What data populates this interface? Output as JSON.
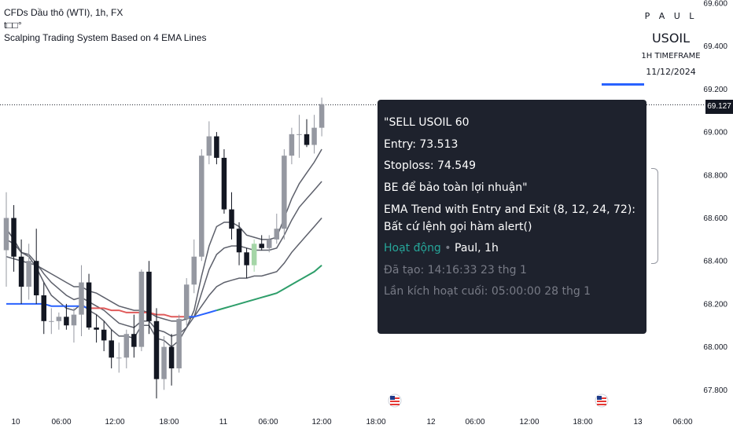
{
  "legend": {
    "line1": "CFDs Dầu thô (WTI), 1h, FX",
    "line2": "t□□°",
    "line3": "Scalping Trading System Based on 4 EMA Lines"
  },
  "branding": {
    "author": "P A U L",
    "symbol": "USOIL",
    "timeframe": "1H TIMEFRAME",
    "date": "11/12/2024"
  },
  "alert_popup": {
    "line1": "\"SELL USOIL 60",
    "line2": "Entry: 73.513",
    "line3": "Stoploss: 74.549",
    "line4": "BE để bảo toàn lợi nhuận\"",
    "line5": "EMA Trend with Entry and Exit (8, 12, 24, 72): Bất cứ lệnh gọi hàm alert()",
    "status": "Hoạt động",
    "separator": "•",
    "owner": "Paul, 1h",
    "created": "Đã tạo: 14:16:33 23 thg 1",
    "last_triggered": "Lần kích hoạt cuối: 05:00:00 28 thg 1"
  },
  "current_price_label": "69.127",
  "colors": {
    "up_candle": "#9598a1",
    "down_candle": "#131722",
    "highlight_candle": "#a5d6a7",
    "ema_fast": "#5d606b",
    "ema_long_red": "#e05a5a",
    "ema_long_blue": "#2962ff",
    "ema_long_green": "#2e9e6a",
    "tooltip_bg": "#1e222d",
    "active_text": "#26a69a"
  },
  "chart_data": {
    "type": "candlestick",
    "symbol": "USOIL",
    "interval": "1h",
    "ylim": [
      67.75,
      69.6
    ],
    "y_ticks": [
      "69.600",
      "69.400",
      "69.200",
      "69.000",
      "68.800",
      "68.600",
      "68.400",
      "68.200",
      "68.000",
      "67.800"
    ],
    "x_ticks": [
      "10",
      "06:00",
      "12:00",
      "18:00",
      "11",
      "06:00",
      "12:00",
      "18:00",
      "12",
      "06:00",
      "12:00",
      "18:00",
      "13",
      "06:00"
    ],
    "current_price": 69.127,
    "candles": [
      [
        68.45,
        68.72,
        68.28,
        68.6
      ],
      [
        68.6,
        68.66,
        68.35,
        68.42
      ],
      [
        68.42,
        68.5,
        68.2,
        68.28
      ],
      [
        68.28,
        68.48,
        68.22,
        68.4
      ],
      [
        68.4,
        68.55,
        68.2,
        68.24
      ],
      [
        68.24,
        68.3,
        68.06,
        68.12
      ],
      [
        68.12,
        68.18,
        68.06,
        68.12
      ],
      [
        68.12,
        68.16,
        68.08,
        68.14
      ],
      [
        68.14,
        68.2,
        68.08,
        68.1
      ],
      [
        68.1,
        68.18,
        68.02,
        68.15
      ],
      [
        68.15,
        68.38,
        68.05,
        68.3
      ],
      [
        68.3,
        68.34,
        68.08,
        68.09
      ],
      [
        68.09,
        68.15,
        68.02,
        68.08
      ],
      [
        68.08,
        68.12,
        67.98,
        68.03
      ],
      [
        68.03,
        68.08,
        67.9,
        67.95
      ],
      [
        67.95,
        68.02,
        67.88,
        67.95
      ],
      [
        67.95,
        68.08,
        67.9,
        68.06
      ],
      [
        68.06,
        68.15,
        67.95,
        68.0
      ],
      [
        68.0,
        68.36,
        67.98,
        68.35
      ],
      [
        68.35,
        68.4,
        68.06,
        68.12
      ],
      [
        68.12,
        68.18,
        67.76,
        67.85
      ],
      [
        67.85,
        68.05,
        67.8,
        68.0
      ],
      [
        68.0,
        68.06,
        67.82,
        67.9
      ],
      [
        67.9,
        68.15,
        67.88,
        68.13
      ],
      [
        68.13,
        68.32,
        68.1,
        68.29
      ],
      [
        68.29,
        68.5,
        68.25,
        68.42
      ],
      [
        68.42,
        68.92,
        68.4,
        68.89
      ],
      [
        68.89,
        69.05,
        68.85,
        68.98
      ],
      [
        68.98,
        69.0,
        68.85,
        68.88
      ],
      [
        68.88,
        68.92,
        68.62,
        68.64
      ],
      [
        68.64,
        68.72,
        68.5,
        68.55
      ],
      [
        68.55,
        68.58,
        68.38,
        68.44
      ],
      [
        68.44,
        68.46,
        68.32,
        68.38
      ],
      [
        68.38,
        68.5,
        68.35,
        68.48
      ],
      [
        68.48,
        68.52,
        68.45,
        68.46
      ],
      [
        68.46,
        68.52,
        68.44,
        68.5
      ],
      [
        68.5,
        68.62,
        68.48,
        68.55
      ],
      [
        68.55,
        68.92,
        68.5,
        68.89
      ],
      [
        68.89,
        69.02,
        68.85,
        68.99
      ],
      [
        68.99,
        69.08,
        68.88,
        68.99
      ],
      [
        68.99,
        69.06,
        68.93,
        68.94
      ],
      [
        68.94,
        69.08,
        68.9,
        69.02
      ],
      [
        69.02,
        69.16,
        68.98,
        69.13
      ]
    ],
    "ema_series": [
      {
        "name": "EMA 8",
        "values": [
          68.55,
          68.5,
          68.44,
          68.42,
          68.37,
          68.3,
          68.24,
          68.21,
          68.18,
          68.17,
          68.2,
          68.17,
          68.15,
          68.12,
          68.08,
          68.05,
          68.05,
          68.04,
          68.1,
          68.1,
          68.04,
          68.03,
          68.0,
          68.03,
          68.09,
          68.17,
          68.33,
          68.47,
          68.56,
          68.58,
          68.58,
          68.56,
          68.52,
          68.51,
          68.5,
          68.5,
          68.51,
          68.6,
          68.69,
          68.76,
          68.81,
          68.86,
          68.92
        ]
      },
      {
        "name": "EMA 12",
        "values": [
          68.5,
          68.48,
          68.44,
          68.43,
          68.39,
          68.34,
          68.3,
          68.27,
          68.24,
          68.22,
          68.23,
          68.21,
          68.19,
          68.17,
          68.14,
          68.11,
          68.1,
          68.09,
          68.12,
          68.12,
          68.08,
          68.07,
          68.05,
          68.06,
          68.09,
          68.14,
          68.25,
          68.36,
          68.43,
          68.46,
          68.47,
          68.47,
          68.46,
          68.45,
          68.45,
          68.45,
          68.46,
          68.52,
          68.59,
          68.65,
          68.69,
          68.73,
          68.77
        ]
      },
      {
        "name": "EMA 24",
        "values": [
          68.42,
          68.41,
          68.4,
          68.39,
          68.38,
          68.36,
          68.34,
          68.32,
          68.3,
          68.28,
          68.28,
          68.26,
          68.25,
          68.23,
          68.21,
          68.19,
          68.18,
          68.17,
          68.17,
          68.16,
          68.14,
          68.13,
          68.12,
          68.12,
          68.13,
          68.14,
          68.19,
          68.24,
          68.28,
          68.3,
          68.31,
          68.32,
          68.32,
          68.33,
          68.33,
          68.34,
          68.35,
          68.39,
          68.44,
          68.48,
          68.52,
          68.56,
          68.6
        ]
      },
      {
        "name": "EMA 72",
        "values": [
          68.2,
          68.2,
          68.2,
          68.2,
          68.2,
          68.2,
          68.19,
          68.19,
          68.19,
          68.19,
          68.19,
          68.18,
          68.18,
          68.18,
          68.17,
          68.17,
          68.16,
          68.16,
          68.16,
          68.16,
          68.15,
          68.15,
          68.14,
          68.14,
          68.14,
          68.14,
          68.15,
          68.16,
          68.17,
          68.18,
          68.19,
          68.2,
          68.21,
          68.22,
          68.23,
          68.24,
          68.25,
          68.27,
          68.29,
          68.31,
          68.33,
          68.35,
          68.38
        ]
      }
    ]
  }
}
